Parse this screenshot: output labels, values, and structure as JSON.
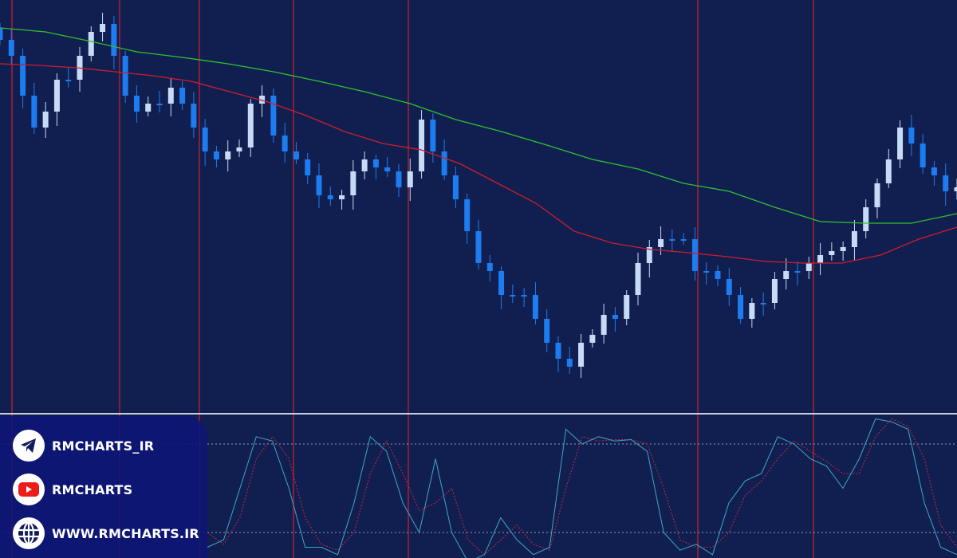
{
  "chart_data": {
    "type": "candlestick",
    "title": "",
    "colors": {
      "background": "#111f50",
      "bullish": "#c5dbf6",
      "bearish": "#1c7cf0",
      "ma_fast": "#d01c2a",
      "ma_slow": "#2ec22e",
      "separator": "#d0202a",
      "stoch_main": "#3fa6c8",
      "stoch_signal": "#c0283a"
    },
    "close": [
      450,
      430,
      380,
      340,
      360,
      400,
      400,
      430,
      460,
      470,
      430,
      380,
      360,
      370,
      370,
      390,
      370,
      340,
      310,
      300,
      310,
      315,
      370,
      380,
      330,
      310,
      300,
      280,
      255,
      250,
      255,
      285,
      300,
      290,
      285,
      265,
      285,
      350,
      310,
      280,
      250,
      210,
      170,
      160,
      130,
      130,
      130,
      100,
      70,
      50,
      40,
      70,
      80,
      105,
      100,
      130,
      170,
      190,
      200,
      200,
      200,
      160,
      160,
      150,
      130,
      100,
      120,
      120,
      150,
      160,
      160,
      170,
      180,
      185,
      190,
      210,
      240,
      270,
      300,
      340,
      320,
      290,
      280,
      260,
      265
    ],
    "ma_slow": [
      465,
      460,
      448,
      435,
      428,
      420,
      410,
      398,
      385,
      370,
      350,
      335,
      318,
      300,
      288,
      270,
      260,
      240,
      222,
      220,
      220,
      232
    ],
    "ma_fast": [
      420,
      418,
      415,
      410,
      405,
      398,
      385,
      372,
      355,
      335,
      320,
      312,
      295,
      270,
      245,
      210,
      195,
      187,
      183,
      178,
      172,
      170,
      170,
      180,
      200,
      215
    ],
    "stochastic": {
      "levels": [
        80,
        20
      ],
      "main": [
        10,
        15,
        50,
        85,
        82,
        50,
        10,
        10,
        5,
        40,
        85,
        75,
        40,
        20,
        70,
        20,
        0,
        5,
        30,
        15,
        5,
        10,
        90,
        80,
        85,
        82,
        83,
        75,
        20,
        8,
        12,
        5,
        40,
        55,
        60,
        85,
        80,
        70,
        65,
        50,
        70,
        97,
        95,
        90,
        40,
        10,
        5
      ],
      "signal": [
        20,
        12,
        30,
        70,
        85,
        70,
        30,
        12,
        8,
        20,
        60,
        82,
        60,
        35,
        40,
        50,
        15,
        5,
        15,
        25,
        12,
        8,
        50,
        85,
        82,
        83,
        83,
        80,
        50,
        15,
        10,
        10,
        20,
        45,
        55,
        70,
        82,
        75,
        68,
        60,
        60,
        85,
        97,
        92,
        70,
        25,
        10
      ]
    }
  },
  "branding": {
    "telegram": {
      "label": "RMCHARTS_IR",
      "icon": "telegram-icon"
    },
    "youtube": {
      "label": "RMCHARTS",
      "icon": "youtube-icon"
    },
    "website": {
      "label": "WWW.RMCHARTS.IR",
      "icon": "globe-icon"
    }
  }
}
